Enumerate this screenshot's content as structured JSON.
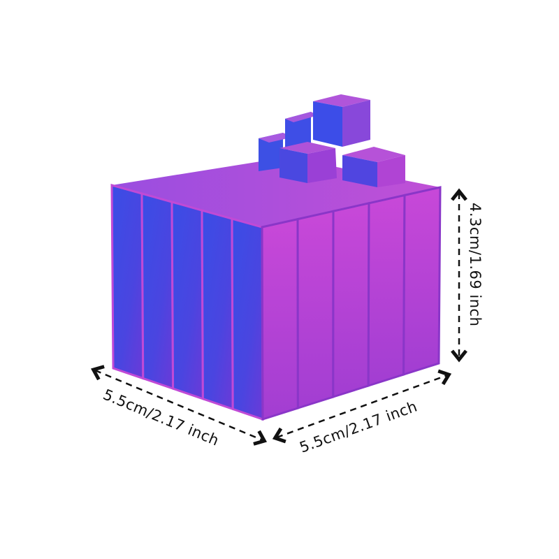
{
  "product": {
    "colors": {
      "blue": "#3a4de6",
      "purple": "#8a3ad8",
      "pink": "#c844d4",
      "top": "#b050d8"
    }
  },
  "dimensions": {
    "width_label": "5.5cm/2.17 inch",
    "depth_label": "5.5cm/2.17 inch",
    "height_label": "4.3cm/1.69 inch"
  }
}
